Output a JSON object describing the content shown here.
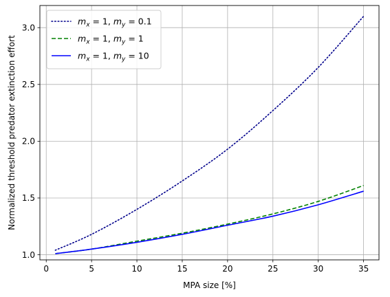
{
  "chart_data": {
    "type": "line",
    "xlabel": "MPA size [%]",
    "ylabel": "Normalized threshold predator extinction effort",
    "xlim": [
      -0.7,
      36.7
    ],
    "ylim": [
      0.955,
      3.195
    ],
    "xticks": [
      0,
      5,
      10,
      15,
      20,
      25,
      30,
      35
    ],
    "yticks": [
      1.0,
      1.5,
      2.0,
      2.5,
      3.0
    ],
    "xtick_labels": [
      "0",
      "5",
      "10",
      "15",
      "20",
      "25",
      "30",
      "35"
    ],
    "ytick_labels": [
      "1.0",
      "1.5",
      "2.0",
      "2.5",
      "3.0"
    ],
    "grid": true,
    "legend_position": "top-left",
    "series": [
      {
        "name": "m_x = 1, m_y = 0.1",
        "label_parts": {
          "a": "m",
          "a_sub": "x",
          "b": " = 1, ",
          "c": "m",
          "c_sub": "y",
          "d": " = 0.1"
        },
        "color": "#00008b",
        "style": "dotted",
        "x": [
          1,
          5,
          10,
          15,
          20,
          25,
          30,
          35
        ],
        "y": [
          1.04,
          1.18,
          1.4,
          1.65,
          1.93,
          2.27,
          2.65,
          3.1
        ]
      },
      {
        "name": "m_x = 1, m_y = 1",
        "label_parts": {
          "a": "m",
          "a_sub": "x",
          "b": " = 1, ",
          "c": "m",
          "c_sub": "y",
          "d": " = 1"
        },
        "color": "#008000",
        "style": "dashed",
        "x": [
          1,
          5,
          10,
          15,
          20,
          25,
          30,
          35
        ],
        "y": [
          1.01,
          1.05,
          1.12,
          1.19,
          1.27,
          1.36,
          1.47,
          1.61
        ]
      },
      {
        "name": "m_x = 1, m_y = 10",
        "label_parts": {
          "a": "m",
          "a_sub": "x",
          "b": " = 1, ",
          "c": "m",
          "c_sub": "y",
          "d": " = 10"
        },
        "color": "#0000ff",
        "style": "solid",
        "x": [
          1,
          5,
          10,
          15,
          20,
          25,
          30,
          35
        ],
        "y": [
          1.01,
          1.05,
          1.11,
          1.18,
          1.26,
          1.34,
          1.44,
          1.56
        ]
      }
    ]
  }
}
